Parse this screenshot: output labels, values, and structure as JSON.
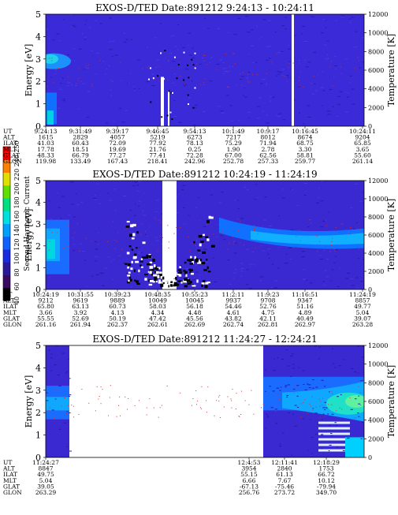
{
  "colorbar": {
    "label": "Second Harmonic Current",
    "ticks": [
      "40",
      "60",
      "80",
      "100",
      "120",
      "140",
      "160",
      "180",
      "200",
      "220",
      "240",
      "250"
    ],
    "colors": [
      "#000000",
      "#3a0a60",
      "#2a1a9a",
      "#1a2ae0",
      "#1060ff",
      "#00a0ff",
      "#00e0e0",
      "#00e080",
      "#60e000",
      "#e0e000",
      "#ff8000",
      "#ff0000"
    ]
  },
  "orbit_labels": [
    "UT",
    "ALT",
    "ILAT",
    "MLT",
    "GLAT",
    "GLON"
  ],
  "chart_data": [
    {
      "type": "heatmap",
      "title": "EXOS-D/TED   Date:891212   9:24:13 - 10:24:11",
      "ylabel": "Energy [eV]",
      "y2label": "Temperature [K]",
      "ylim": [
        0,
        5
      ],
      "y2lim": [
        0,
        12000
      ],
      "yticks": [
        "0",
        "1",
        "2",
        "3",
        "4",
        "5"
      ],
      "y2ticks": [
        "0",
        "2000",
        "4000",
        "6000",
        "8000",
        "10000",
        "12000"
      ],
      "columns": [
        [
          "9:24:13",
          "1615",
          "41.03",
          "17.78",
          "48.33",
          "119.98"
        ],
        [
          "9:31:49",
          "2829",
          "60.43",
          "18.51",
          "66.79",
          "133.49"
        ],
        [
          "9:39:17",
          "4057",
          "72.09",
          "19.69",
          "77.27",
          "167.43"
        ],
        [
          "9:46:45",
          "5219",
          "77.92",
          "21.76",
          "77.41",
          "218.41"
        ],
        [
          "9:54:13",
          "6273",
          "78.13",
          "0.25",
          "72.28",
          "242.96"
        ],
        [
          "10:1:49",
          "7217",
          "75.29",
          "1.90",
          "67.00",
          "252.78"
        ],
        [
          "10:9:17",
          "8012",
          "71.94",
          "2.78",
          "62.56",
          "257.33"
        ],
        [
          "10:16:45",
          "8674",
          "68.75",
          "3.30",
          "58.81",
          "259.77"
        ],
        [
          "10:24:11",
          "9204",
          "65.85",
          "3.65",
          "55.60",
          "261.14"
        ]
      ]
    },
    {
      "type": "heatmap",
      "title": "EXOS-D/TED   Date:891212   10:24:19 - 11:24:19",
      "ylabel": "Energy [eV]",
      "y2label": "Temperature [K]",
      "ylim": [
        0,
        5
      ],
      "y2lim": [
        0,
        12000
      ],
      "yticks": [
        "0",
        "1",
        "2",
        "3",
        "4",
        "5"
      ],
      "y2ticks": [
        "0",
        "2000",
        "4000",
        "6000",
        "8000",
        "10000",
        "12000"
      ],
      "columns": [
        [
          "10:24:19",
          "9212",
          "65.80",
          "3.66",
          "55.55",
          "261.16"
        ],
        [
          "10:31:55",
          "9619",
          "63.13",
          "3.92",
          "52.69",
          "261.94"
        ],
        [
          "10:39:23",
          "9889",
          "60.73",
          "4.13",
          "50.19",
          "262.37"
        ],
        [
          "10:48:35",
          "10049",
          "58.03",
          "4.34",
          "47.42",
          "262.61"
        ],
        [
          "10:55:23",
          "10045",
          "56.18",
          "4.48",
          "45.56",
          "262.69"
        ],
        [
          "11:2:11",
          "9937",
          "54.46",
          "4.61",
          "43.82",
          "262.74"
        ],
        [
          "11:9:23",
          "9708",
          "52.76",
          "4.75",
          "42.11",
          "262.81"
        ],
        [
          "11:16:51",
          "9347",
          "51.16",
          "4.89",
          "40.49",
          "262.97"
        ],
        [
          "11:24:19",
          "8857",
          "49.77",
          "5.04",
          "39.07",
          "263.28"
        ]
      ]
    },
    {
      "type": "heatmap",
      "title": "EXOS-D/TED   Date:891212   11:24:27 - 12:24:21",
      "ylabel": "Energy [eV]",
      "y2label": "Temperature [K]",
      "ylim": [
        0,
        5
      ],
      "y2lim": [
        0,
        12000
      ],
      "yticks": [
        "0",
        "1",
        "2",
        "3",
        "4",
        "5"
      ],
      "y2ticks": [
        "0",
        "2000",
        "4000",
        "6000",
        "8000",
        "10000",
        "12000"
      ],
      "columns": [
        [
          "11:24:27",
          "8847",
          "49.75",
          "5.04",
          "39.05",
          "263.29"
        ],
        [
          "12:4:53",
          "3954",
          "55.15",
          "6.66",
          "-67.13",
          "256.76"
        ],
        [
          "12:11:41",
          "2840",
          "61.13",
          "7.67",
          "-75.46",
          "273.72"
        ],
        [
          "12:18:29",
          "1753",
          "66.72",
          "10.12",
          "-79.94",
          "349.70"
        ]
      ]
    }
  ]
}
